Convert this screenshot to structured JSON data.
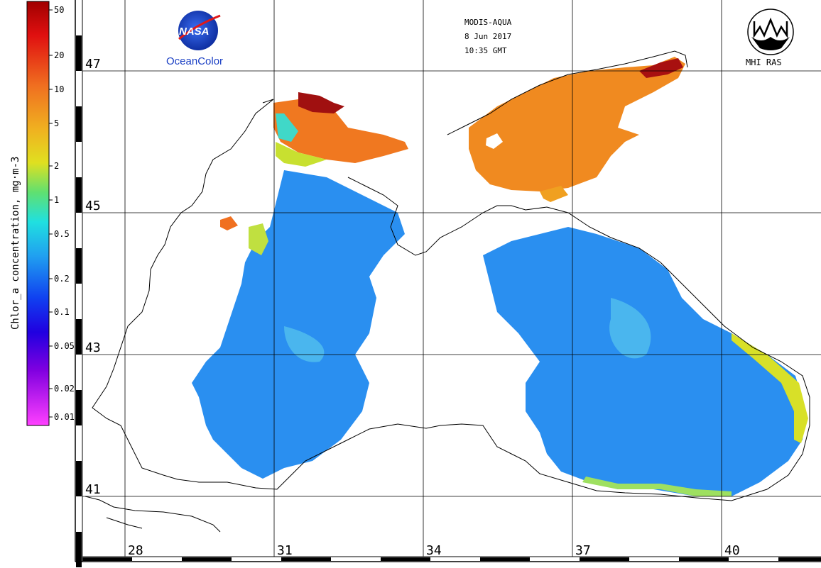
{
  "header": {
    "sensor": "MODIS-AQUA",
    "date": "8 Jun 2017",
    "time": "10:35 GMT"
  },
  "logos": {
    "nasa": "NASA",
    "oceancolor": "OceanColor",
    "mhi": "MHI RAS"
  },
  "colorbar": {
    "title": "Chlor_a concentration, mg·m-3",
    "ticks": [
      "50",
      "20",
      "10",
      "5",
      "2",
      "1",
      "0.5",
      "0.2",
      "0.1",
      "0.05",
      "0.02",
      "0.01"
    ]
  },
  "grid": {
    "lat_labels": [
      "47",
      "45",
      "43",
      "41"
    ],
    "lon_labels": [
      "28",
      "31",
      "34",
      "37",
      "40"
    ]
  },
  "colors": {
    "ocean_low": "#1f8ef0",
    "ocean_mid": "#3fb8e8",
    "shelf_high": "#f09020",
    "azov": "#f08a20",
    "coast": "#000000"
  }
}
